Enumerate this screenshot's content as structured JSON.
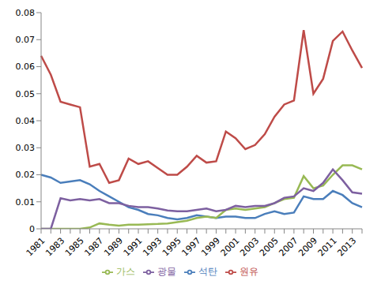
{
  "chart_data": {
    "type": "line",
    "categories": [
      "1981",
      null,
      "1983",
      null,
      "1985",
      null,
      "1987",
      null,
      "1989",
      null,
      "1991",
      null,
      "1993",
      null,
      "1995",
      null,
      "1997",
      null,
      "1999",
      null,
      "2001",
      null,
      "2003",
      null,
      "2005",
      null,
      "2007",
      null,
      "2009",
      null,
      "2011",
      null,
      "2013",
      null
    ],
    "series": [
      {
        "name": "석탄",
        "color": "#4a7ebb",
        "values": [
          0.02,
          0.019,
          0.017,
          0.0175,
          0.018,
          0.0165,
          0.014,
          0.012,
          0.01,
          0.008,
          0.007,
          0.0055,
          0.005,
          0.004,
          0.0035,
          0.004,
          0.005,
          0.0045,
          0.004,
          0.0045,
          0.0045,
          0.004,
          0.004,
          0.0055,
          0.0065,
          0.0055,
          0.006,
          0.012,
          0.011,
          0.011,
          0.014,
          0.0125,
          0.0095,
          0.008
        ]
      },
      {
        "name": "원유",
        "color": "#be4b48",
        "values": [
          0.064,
          0.057,
          0.047,
          0.046,
          0.045,
          0.023,
          0.024,
          0.017,
          0.018,
          0.026,
          0.024,
          0.025,
          0.0225,
          0.02,
          0.02,
          0.023,
          0.027,
          0.0245,
          0.025,
          0.036,
          0.0335,
          0.0295,
          0.031,
          0.035,
          0.0415,
          0.046,
          0.0475,
          0.0735,
          0.05,
          0.0555,
          0.0695,
          0.073,
          0.066,
          0.0595
        ]
      },
      {
        "name": "가스",
        "color": "#98b954",
        "values": [
          0,
          0,
          0,
          0,
          0,
          0.0005,
          0.002,
          0.0015,
          0.0012,
          0.0015,
          0.0015,
          0.0017,
          0.0018,
          0.002,
          0.0025,
          0.003,
          0.004,
          0.0045,
          0.004,
          0.007,
          0.0075,
          0.007,
          0.0075,
          0.008,
          0.0095,
          0.011,
          0.0115,
          0.0195,
          0.015,
          0.016,
          0.02,
          0.0235,
          0.0235,
          0.022
        ]
      },
      {
        "name": "광물",
        "color": "#7d60a0",
        "values": [
          0,
          0,
          0.0113,
          0.0105,
          0.011,
          0.0105,
          0.011,
          0.0095,
          0.0095,
          0.0085,
          0.008,
          0.008,
          0.0075,
          0.0068,
          0.0065,
          0.0065,
          0.007,
          0.0075,
          0.0065,
          0.007,
          0.0085,
          0.008,
          0.0085,
          0.0085,
          0.0095,
          0.0115,
          0.012,
          0.015,
          0.014,
          0.017,
          0.022,
          0.018,
          0.0135,
          0.013
        ]
      }
    ],
    "ylim": [
      0,
      0.08
    ],
    "yticks": [
      0,
      0.01,
      0.02,
      0.03,
      0.04,
      0.05,
      0.06,
      0.07,
      0.08
    ],
    "grid": false,
    "legend": "bottom",
    "marker": "none",
    "line_style": "solid"
  }
}
